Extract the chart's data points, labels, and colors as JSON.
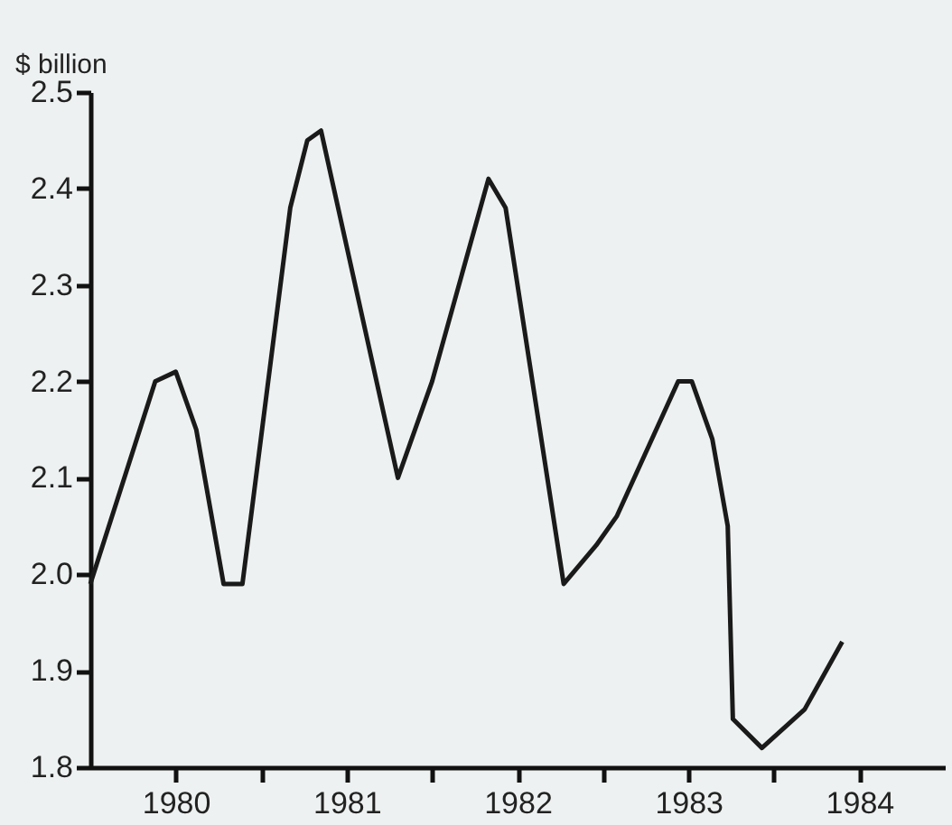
{
  "chart_data": {
    "type": "line",
    "ylabel": "$ billion",
    "x": [
      1980.0,
      1980.38,
      1980.5,
      1980.62,
      1980.78,
      1980.89,
      1981.17,
      1981.27,
      1981.35,
      1981.6,
      1981.8,
      1982.0,
      1982.33,
      1982.43,
      1982.77,
      1982.96,
      1983.08,
      1983.44,
      1983.52,
      1983.64,
      1983.73,
      1983.76,
      1983.93,
      1984.18,
      1984.4
    ],
    "series": [
      {
        "color": "#1a1a1a",
        "values": [
          1.99,
          2.2,
          2.21,
          2.15,
          1.99,
          1.99,
          2.38,
          2.45,
          2.46,
          2.26,
          2.1,
          2.2,
          2.41,
          2.38,
          1.99,
          2.03,
          2.06,
          2.2,
          2.2,
          2.14,
          2.05,
          1.85,
          1.82,
          1.86,
          1.93
        ]
      }
    ],
    "xlim": [
      1980,
      1985
    ],
    "xticks": [
      {
        "value": 1980.5,
        "label": "1980"
      },
      {
        "value": 1981,
        "label": null
      },
      {
        "value": 1981.5,
        "label": "1981"
      },
      {
        "value": 1982,
        "label": null
      },
      {
        "value": 1982.5,
        "label": "1982"
      },
      {
        "value": 1983,
        "label": null
      },
      {
        "value": 1983.5,
        "label": "1983"
      },
      {
        "value": 1984,
        "label": null
      },
      {
        "value": 1984.5,
        "label": "1984"
      }
    ],
    "ylim": [
      1.8,
      2.5
    ],
    "yticks": [
      {
        "value": 1.8,
        "label": "1.8"
      },
      {
        "value": 1.9,
        "label": "1.9"
      },
      {
        "value": 2.0,
        "label": "2.0"
      },
      {
        "value": 2.1,
        "label": "2.1"
      },
      {
        "value": 2.2,
        "label": "2.2"
      },
      {
        "value": 2.3,
        "label": "2.3"
      },
      {
        "value": 2.4,
        "label": "2.4"
      },
      {
        "value": 2.5,
        "label": "2.5"
      }
    ],
    "grid": false,
    "legend": false,
    "marker": "none",
    "line_style": "solid"
  }
}
